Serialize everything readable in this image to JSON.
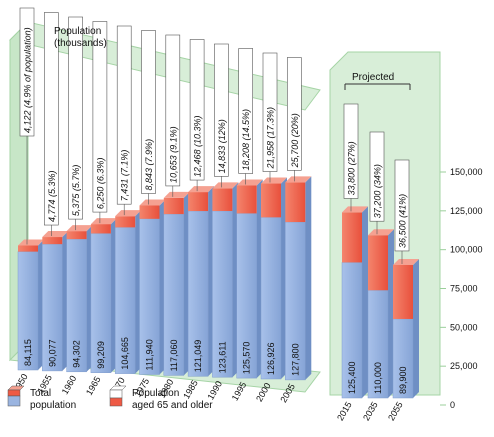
{
  "chart_data": {
    "type": "bar",
    "stacked": true,
    "title": "Population\n(thousands)",
    "projected_label": "Projected",
    "categories": [
      "1950",
      "1955",
      "1960",
      "1965",
      "1970",
      "1975",
      "1980",
      "1985",
      "1990",
      "1995",
      "2000",
      "2005",
      "2015",
      "2035",
      "2055"
    ],
    "projected_from": "2015",
    "total_population": [
      84115,
      90077,
      94302,
      99209,
      104665,
      111940,
      117060,
      121049,
      123611,
      125570,
      126926,
      127800,
      125400,
      110000,
      89900
    ],
    "total_labels": [
      "84,115",
      "90,077",
      "94,302",
      "99,209",
      "104,665",
      "111,940",
      "117,060",
      "121,049",
      "123,611",
      "125,570",
      "126,926",
      "127,800",
      "125,400",
      "110,000",
      "89,900"
    ],
    "aged_65_plus": [
      4122,
      4774,
      5375,
      6250,
      7431,
      8843,
      10653,
      12468,
      14833,
      18208,
      21958,
      25700,
      33800,
      37200,
      36500
    ],
    "aged_labels": [
      "4,122 (4.9% of population)",
      "4,774 (5.3%)",
      "5,375 (5.7%)",
      "6,250 (6.3%)",
      "7,431 (7.1%)",
      "8,843 (7.9%)",
      "10,653 (9.1%)",
      "12,468 (10.3%)",
      "14,833 (12%)",
      "18,208 (14.5%)",
      "21,958 (17.3%)",
      "25,700 (20%)",
      "33,800 (27%)",
      "37,200 (34%)",
      "36,500 (41%)"
    ],
    "y_ticks": [
      "150,000",
      "125,000",
      "100,000",
      "75,000",
      "50,000",
      "25,000",
      "0"
    ],
    "ylim": [
      0,
      150000
    ],
    "legend": [
      {
        "name": "Total\npopulation",
        "color": "#9ab4e0"
      },
      {
        "name": "Population\naged 65 and older",
        "color": "#ee5a45"
      }
    ],
    "colors": {
      "total": "#9ab4e0",
      "aged": "#ee5a45",
      "aged_dark": "#c8221a",
      "panel": "#cfeacf",
      "panel_edge": "#a6d4a6"
    }
  }
}
